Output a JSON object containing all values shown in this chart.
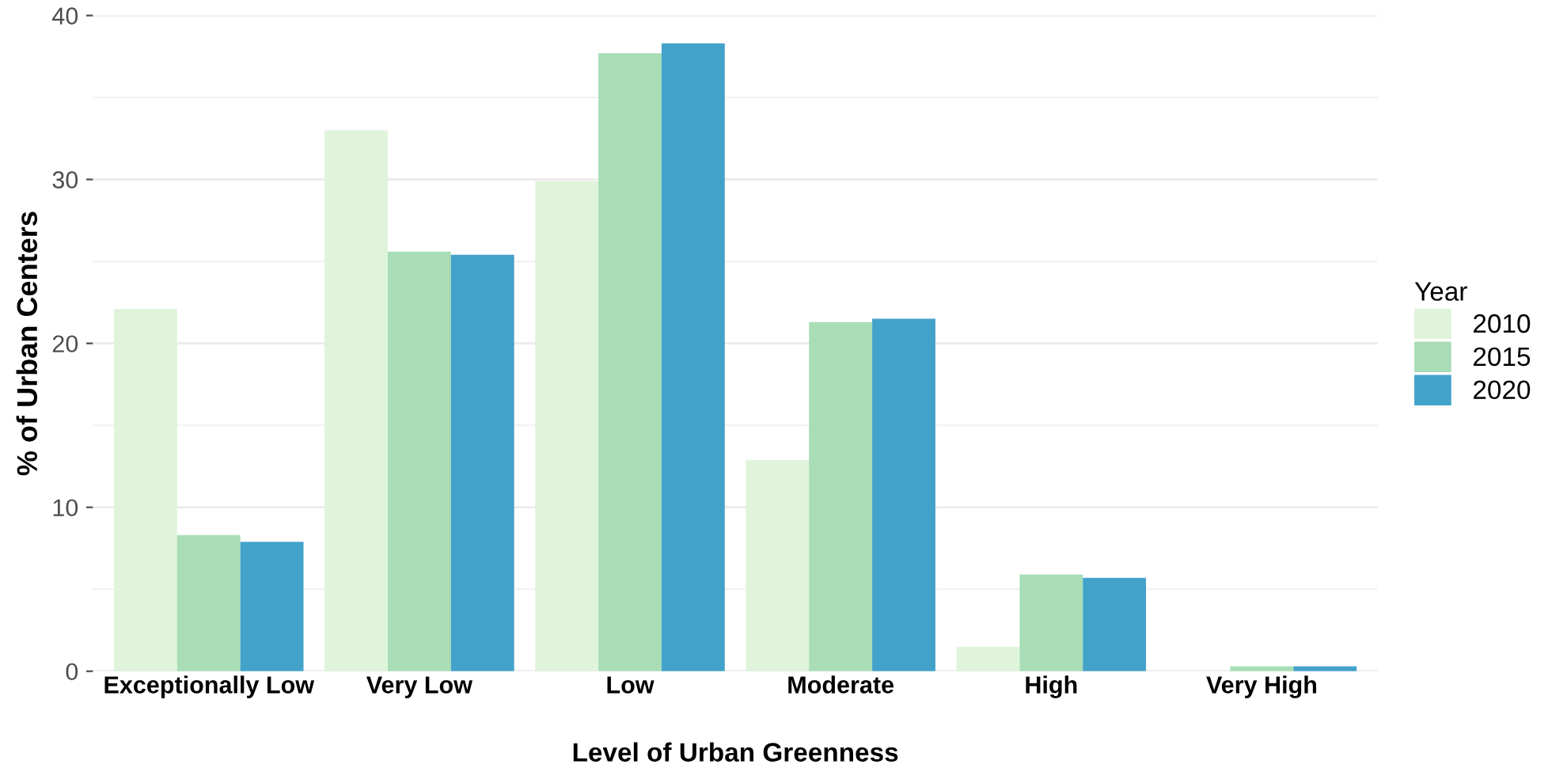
{
  "chart_data": {
    "type": "bar",
    "xlabel": "Level of Urban Greenness",
    "ylabel": "% of Urban Centers",
    "legend_title": "Year",
    "categories": [
      "Exceptionally Low",
      "Very Low",
      "Low",
      "Moderate",
      "High",
      "Very High"
    ],
    "series": [
      {
        "name": "2010",
        "color": "#e0f3db",
        "values": [
          22.1,
          33.0,
          29.9,
          12.9,
          1.5,
          0
        ]
      },
      {
        "name": "2015",
        "color": "#a8ddb5",
        "values": [
          8.3,
          25.6,
          37.7,
          21.3,
          5.9,
          0.3
        ]
      },
      {
        "name": "2020",
        "color": "#43a2ca",
        "values": [
          7.9,
          25.4,
          38.3,
          21.5,
          5.7,
          0.3
        ]
      }
    ],
    "ylim": [
      0,
      40
    ],
    "yticks": [
      0,
      10,
      20,
      30,
      40
    ],
    "grid": "y",
    "legend": "right"
  }
}
